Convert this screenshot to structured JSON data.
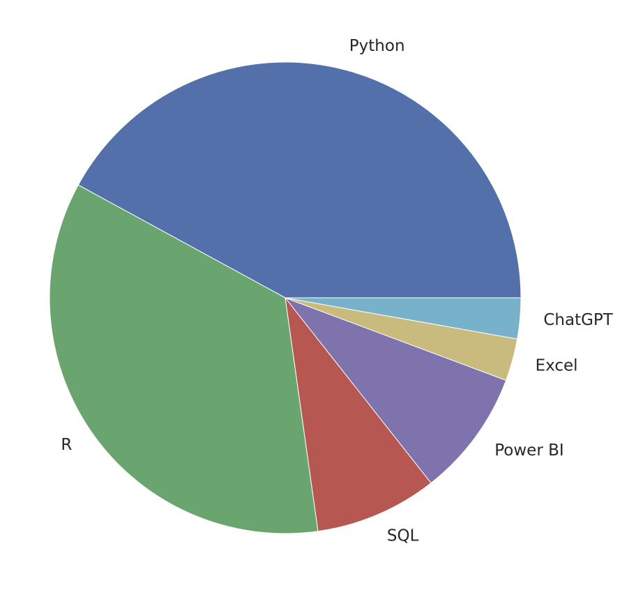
{
  "chart_data": {
    "type": "pie",
    "start_angle": 0,
    "direction": "counterclockwise",
    "slices": [
      {
        "label": "Python",
        "value": 42.1,
        "color": "#5370AA"
      },
      {
        "label": "R",
        "value": 35.2,
        "color": "#6AA56F"
      },
      {
        "label": "SQL",
        "value": 8.4,
        "color": "#B65752"
      },
      {
        "label": "Power BI",
        "value": 8.7,
        "color": "#7F73AD"
      },
      {
        "label": "Excel",
        "value": 2.9,
        "color": "#C9BA7E"
      },
      {
        "label": "ChatGPT",
        "value": 2.8,
        "color": "#78B2CA"
      }
    ]
  }
}
